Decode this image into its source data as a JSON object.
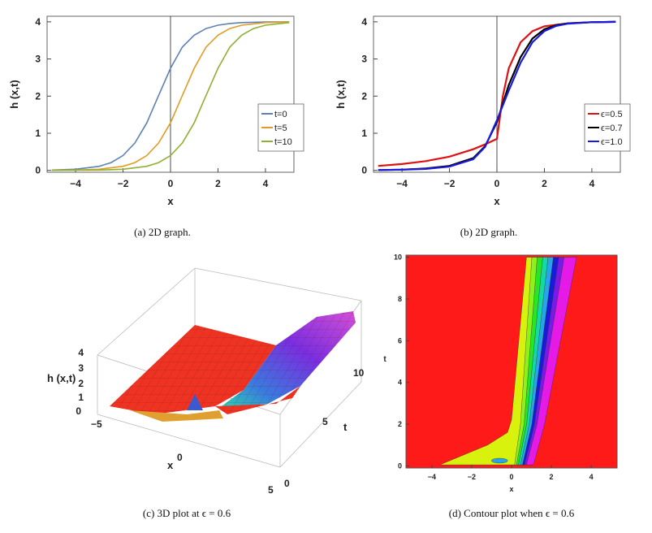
{
  "captions": {
    "a": "(a)  2D graph.",
    "b": "(b)  2D graph.",
    "c": "(c)  3D plot at ϵ = 0.6",
    "d": "(d)  Contour plot when ϵ = 0.6"
  },
  "chart_data": [
    {
      "id": "a",
      "type": "line",
      "xlabel": "x",
      "ylabel": "h (x,t)",
      "xlim": [
        -5.2,
        5.2
      ],
      "ylim": [
        -0.05,
        4.15
      ],
      "xticks": [
        "−4",
        "−2",
        "0",
        "2",
        "4"
      ],
      "xtick_values": [
        -4,
        -2,
        0,
        2,
        4
      ],
      "yticks": [
        "0",
        "1",
        "2",
        "3",
        "4"
      ],
      "ytick_values": [
        0,
        1,
        2,
        3,
        4
      ],
      "legend_position": "center-right",
      "series": [
        {
          "name": "t=0",
          "color": "#5e81b5",
          "x": [
            -5,
            -4,
            -3,
            -2.5,
            -2,
            -1.5,
            -1,
            -0.5,
            0,
            0.5,
            1,
            1.5,
            2,
            2.5,
            3,
            4,
            5
          ],
          "y": [
            0.01,
            0.03,
            0.11,
            0.21,
            0.4,
            0.74,
            1.28,
            2.02,
            2.75,
            3.32,
            3.64,
            3.82,
            3.91,
            3.955,
            3.98,
            3.995,
            4.0
          ]
        },
        {
          "name": "t=5",
          "color": "#e19c24",
          "x": [
            -5,
            -4,
            -3,
            -2,
            -1.5,
            -1,
            -0.5,
            0,
            0.5,
            1,
            1.5,
            2,
            2.5,
            3,
            4,
            5
          ],
          "y": [
            0.003,
            0.01,
            0.03,
            0.11,
            0.21,
            0.4,
            0.74,
            1.28,
            2.02,
            2.75,
            3.32,
            3.64,
            3.82,
            3.91,
            3.98,
            3.995
          ]
        },
        {
          "name": "t=10",
          "color": "#8fb032",
          "x": [
            -5,
            -4,
            -3,
            -2,
            -1,
            -0.5,
            0,
            0.5,
            1,
            1.5,
            2,
            2.5,
            3,
            3.5,
            4,
            5
          ],
          "y": [
            0.002,
            0.005,
            0.01,
            0.03,
            0.11,
            0.21,
            0.4,
            0.74,
            1.28,
            2.02,
            2.75,
            3.32,
            3.64,
            3.82,
            3.91,
            3.98
          ]
        }
      ]
    },
    {
      "id": "b",
      "type": "line",
      "xlabel": "x",
      "ylabel": "h (x,t)",
      "xlim": [
        -5.2,
        5.2
      ],
      "ylim": [
        -0.05,
        4.15
      ],
      "xticks": [
        "−4",
        "−2",
        "0",
        "2",
        "4"
      ],
      "xtick_values": [
        -4,
        -2,
        0,
        2,
        4
      ],
      "yticks": [
        "0",
        "1",
        "2",
        "3",
        "4"
      ],
      "ytick_values": [
        0,
        1,
        2,
        3,
        4
      ],
      "legend_position": "center-right",
      "series": [
        {
          "name": "ϵ=0.5",
          "color": "#dd1111",
          "x": [
            -5,
            -4,
            -3,
            -2,
            -1,
            -0.5,
            0,
            0.25,
            0.5,
            1,
            1.5,
            2,
            3,
            4,
            5
          ],
          "y": [
            0.12,
            0.17,
            0.25,
            0.37,
            0.57,
            0.7,
            0.85,
            2.0,
            2.75,
            3.45,
            3.75,
            3.88,
            3.96,
            3.99,
            4.0
          ]
        },
        {
          "name": "ϵ=0.7",
          "color": "#000000",
          "x": [
            -5,
            -4,
            -3,
            -2,
            -1,
            -0.5,
            0,
            0.5,
            1,
            1.5,
            2,
            2.5,
            3,
            4,
            5
          ],
          "y": [
            0.01,
            0.02,
            0.05,
            0.12,
            0.33,
            0.65,
            1.3,
            2.3,
            3.05,
            3.55,
            3.8,
            3.91,
            3.96,
            3.99,
            4.0
          ]
        },
        {
          "name": "ϵ=1.0",
          "color": "#1a1add",
          "x": [
            -5,
            -4,
            -3,
            -2,
            -1,
            -0.5,
            0,
            0.5,
            1,
            1.5,
            2,
            2.5,
            3,
            4,
            5
          ],
          "y": [
            0.01,
            0.02,
            0.04,
            0.1,
            0.3,
            0.63,
            1.35,
            2.15,
            2.9,
            3.45,
            3.75,
            3.89,
            3.95,
            3.99,
            4.0
          ]
        }
      ]
    },
    {
      "id": "c",
      "type": "surface",
      "zlabel": "h (x,t)",
      "xlabel": "x",
      "ylabel": "t",
      "x_ticks": [
        "−5",
        "0",
        "5"
      ],
      "t_ticks": [
        "0",
        "5",
        "10"
      ],
      "z_ticks": [
        "0",
        "1",
        "2",
        "3",
        "4"
      ],
      "epsilon": 0.6
    },
    {
      "id": "d",
      "type": "heatmap",
      "xlabel": "x",
      "ylabel": "t",
      "xlim": [
        -5.3,
        5.3
      ],
      "ylim": [
        -0.1,
        10.1
      ],
      "xticks": [
        "−4",
        "−2",
        "0",
        "2",
        "4"
      ],
      "xtick_values": [
        -4,
        -2,
        0,
        2,
        4
      ],
      "yticks": [
        "0",
        "2",
        "4",
        "6",
        "8",
        "10"
      ],
      "ytick_values": [
        0,
        2,
        4,
        6,
        8,
        10
      ],
      "band_colors": [
        "#d9f20d",
        "#8cf21a",
        "#26e626",
        "#14d9a6",
        "#26a6e6",
        "#1a1ad9",
        "#7a1ae6",
        "#e61ae6"
      ],
      "background_color": "#ff1a1a",
      "epsilon": 0.6
    }
  ]
}
